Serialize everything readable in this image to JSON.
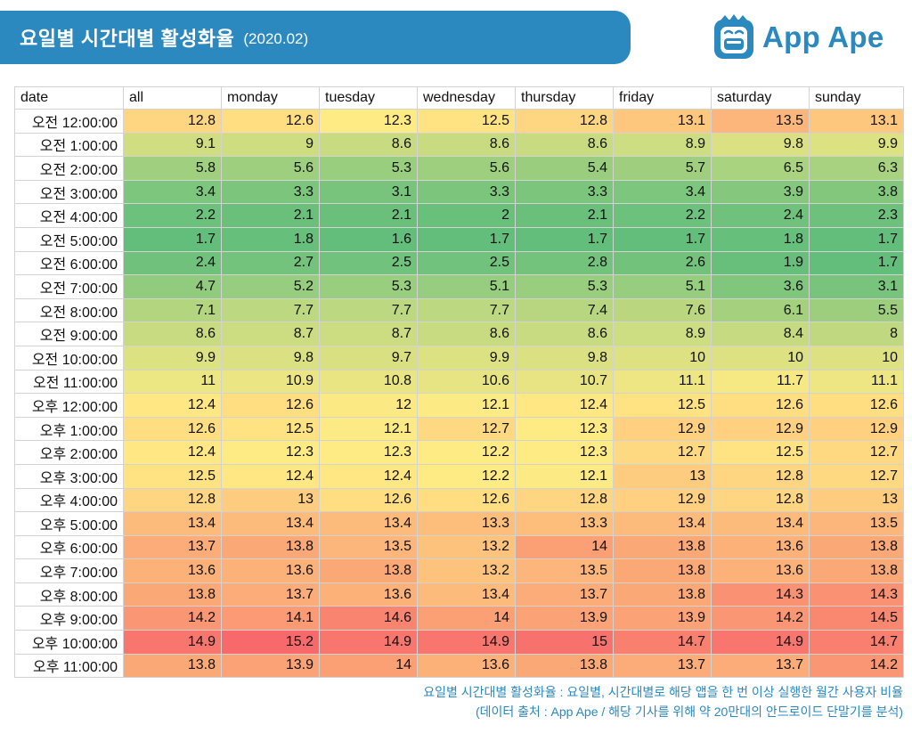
{
  "header": {
    "title": "요일별 시간대별 활성화율",
    "subtitle": "(2020.02)"
  },
  "logo": {
    "text": "App Ape",
    "icon": "ape-face-icon",
    "color": "#2b89c0"
  },
  "colors": {
    "banner": "#2b89c0",
    "low": "#63be7b",
    "mid": "#ffeb84",
    "high": "#f8696b"
  },
  "chart_data": {
    "type": "table",
    "title": "요일별 시간대별 활성화율 (2020.02)",
    "columns": [
      "date",
      "all",
      "monday",
      "tuesday",
      "wednesday",
      "thursday",
      "friday",
      "saturday",
      "sunday"
    ],
    "rows": [
      {
        "date": "오전 12:00:00",
        "values": [
          "12.8",
          "12.6",
          "12.3",
          "12.5",
          "12.8",
          "13.1",
          "13.5",
          "13.1"
        ]
      },
      {
        "date": "오전 1:00:00",
        "values": [
          "9.1",
          "9",
          "8.6",
          "8.6",
          "8.6",
          "8.9",
          "9.8",
          "9.9"
        ]
      },
      {
        "date": "오전 2:00:00",
        "values": [
          "5.8",
          "5.6",
          "5.3",
          "5.6",
          "5.4",
          "5.7",
          "6.5",
          "6.3"
        ]
      },
      {
        "date": "오전 3:00:00",
        "values": [
          "3.4",
          "3.3",
          "3.1",
          "3.3",
          "3.3",
          "3.4",
          "3.9",
          "3.8"
        ]
      },
      {
        "date": "오전 4:00:00",
        "values": [
          "2.2",
          "2.1",
          "2.1",
          "2",
          "2.1",
          "2.2",
          "2.4",
          "2.3"
        ]
      },
      {
        "date": "오전 5:00:00",
        "values": [
          "1.7",
          "1.8",
          "1.6",
          "1.7",
          "1.7",
          "1.7",
          "1.8",
          "1.7"
        ]
      },
      {
        "date": "오전 6:00:00",
        "values": [
          "2.4",
          "2.7",
          "2.5",
          "2.5",
          "2.8",
          "2.6",
          "1.9",
          "1.7"
        ]
      },
      {
        "date": "오전 7:00:00",
        "values": [
          "4.7",
          "5.2",
          "5.3",
          "5.1",
          "5.3",
          "5.1",
          "3.6",
          "3.1"
        ]
      },
      {
        "date": "오전 8:00:00",
        "values": [
          "7.1",
          "7.7",
          "7.7",
          "7.7",
          "7.4",
          "7.6",
          "6.1",
          "5.5"
        ]
      },
      {
        "date": "오전 9:00:00",
        "values": [
          "8.6",
          "8.7",
          "8.7",
          "8.6",
          "8.6",
          "8.9",
          "8.4",
          "8"
        ]
      },
      {
        "date": "오전 10:00:00",
        "values": [
          "9.9",
          "9.8",
          "9.7",
          "9.9",
          "9.8",
          "10",
          "10",
          "10"
        ]
      },
      {
        "date": "오전 11:00:00",
        "values": [
          "11",
          "10.9",
          "10.8",
          "10.6",
          "10.7",
          "11.1",
          "11.7",
          "11.1"
        ]
      },
      {
        "date": "오후 12:00:00",
        "values": [
          "12.4",
          "12.6",
          "12",
          "12.1",
          "12.4",
          "12.5",
          "12.6",
          "12.6"
        ]
      },
      {
        "date": "오후 1:00:00",
        "values": [
          "12.6",
          "12.5",
          "12.1",
          "12.7",
          "12.3",
          "12.9",
          "12.9",
          "12.9"
        ]
      },
      {
        "date": "오후 2:00:00",
        "values": [
          "12.4",
          "12.3",
          "12.3",
          "12.2",
          "12.3",
          "12.7",
          "12.5",
          "12.7"
        ]
      },
      {
        "date": "오후 3:00:00",
        "values": [
          "12.5",
          "12.4",
          "12.4",
          "12.2",
          "12.1",
          "13",
          "12.8",
          "12.7"
        ]
      },
      {
        "date": "오후 4:00:00",
        "values": [
          "12.8",
          "13",
          "12.6",
          "12.6",
          "12.8",
          "12.9",
          "12.8",
          "13"
        ]
      },
      {
        "date": "오후 5:00:00",
        "values": [
          "13.4",
          "13.4",
          "13.4",
          "13.3",
          "13.3",
          "13.4",
          "13.4",
          "13.5"
        ]
      },
      {
        "date": "오후 6:00:00",
        "values": [
          "13.7",
          "13.8",
          "13.5",
          "13.2",
          "14",
          "13.8",
          "13.6",
          "13.8"
        ]
      },
      {
        "date": "오후 7:00:00",
        "values": [
          "13.6",
          "13.6",
          "13.8",
          "13.2",
          "13.5",
          "13.8",
          "13.6",
          "13.8"
        ]
      },
      {
        "date": "오후 8:00:00",
        "values": [
          "13.8",
          "13.7",
          "13.6",
          "13.4",
          "13.7",
          "13.8",
          "14.3",
          "14.3"
        ]
      },
      {
        "date": "오후 9:00:00",
        "values": [
          "14.2",
          "14.1",
          "14.6",
          "14",
          "13.9",
          "13.9",
          "14.2",
          "14.5"
        ]
      },
      {
        "date": "오후 10:00:00",
        "values": [
          "14.9",
          "15.2",
          "14.9",
          "14.9",
          "15",
          "14.7",
          "14.9",
          "14.7"
        ]
      },
      {
        "date": "오후 11:00:00",
        "values": [
          "13.8",
          "13.9",
          "14",
          "13.6",
          "13.8",
          "13.7",
          "13.7",
          "14.2"
        ]
      }
    ]
  },
  "footer": {
    "line1": "요일별 시간대별 활성화율 : 요일별, 시간대별로 해당 앱을 한 번 이상 실행한 월간 사용자 비율",
    "line2": "(데이터 출처 : App Ape / 해당 기사를 위해 약 20만대의 안드로이드 단말기를 분석)"
  }
}
